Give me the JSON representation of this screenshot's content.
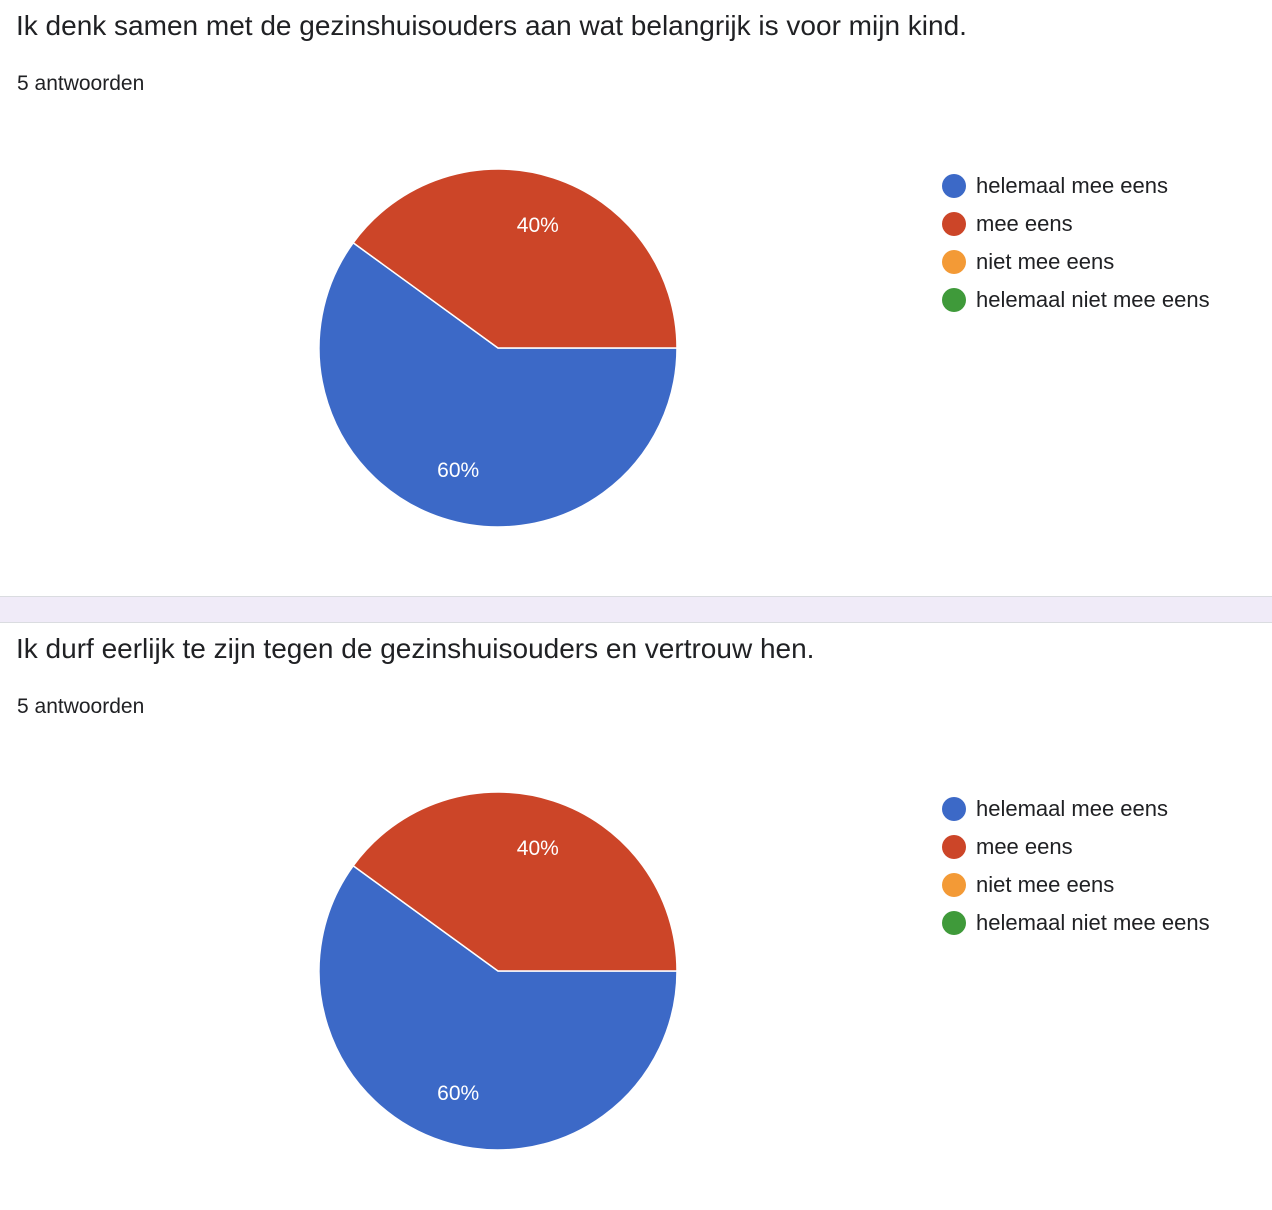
{
  "chart_data": [
    {
      "type": "pie",
      "title": "Ik denk samen met de gezinshuisouders aan wat belangrijk is voor mijn kind.",
      "subtitle": "5 antwoorden",
      "categories": [
        "helemaal mee eens",
        "mee eens",
        "niet mee eens",
        "helemaal niet mee eens"
      ],
      "values": [
        60,
        40,
        0,
        0
      ],
      "data_labels": [
        "60%",
        "40%",
        "",
        ""
      ],
      "colors": [
        "#3c69c7",
        "#cc4528",
        "#f39a36",
        "#3f9a3a"
      ],
      "legend_position": "right"
    },
    {
      "type": "pie",
      "title": "Ik durf eerlijk te zijn tegen de gezinshuisouders en vertrouw hen.",
      "subtitle": "5 antwoorden",
      "categories": [
        "helemaal mee eens",
        "mee eens",
        "niet mee eens",
        "helemaal niet mee eens"
      ],
      "values": [
        60,
        40,
        0,
        0
      ],
      "data_labels": [
        "60%",
        "40%",
        "",
        ""
      ],
      "colors": [
        "#3c69c7",
        "#cc4528",
        "#f39a36",
        "#3f9a3a"
      ],
      "legend_position": "right"
    }
  ]
}
